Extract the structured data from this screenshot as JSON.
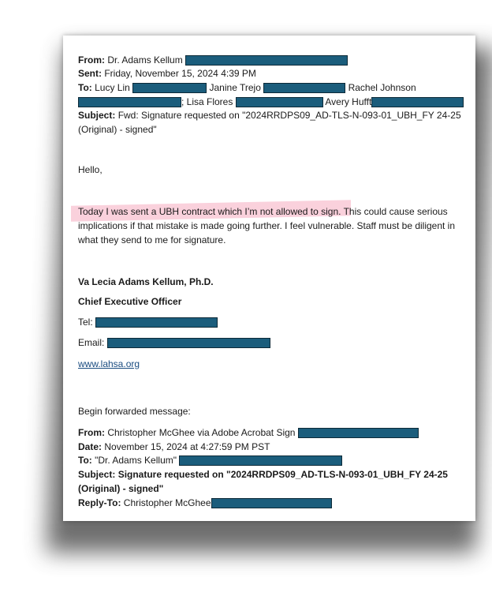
{
  "email": {
    "from_label": "From:",
    "from": "Dr. Adams Kellum",
    "sent_label": "Sent:",
    "sent": "Friday, November 15, 2024 4:39 PM",
    "to_label": "To:",
    "to": [
      "Lucy Lin",
      "Janine Trejo",
      "Rachel Johnson",
      "; Lisa Flores",
      "Avery Hufft"
    ],
    "subject_label": "Subject:",
    "subject_line1": "Fwd: Signature requested on \"2024RRDPS09_AD-TLS-N-093-01_UBH_FY 24-25",
    "subject_line2": "(Original) - signed\"",
    "greeting": "Hello,",
    "body_lines": [
      "Today I was sent a UBH  contract which I’m not allowed to sign. This could cause serious",
      "implications if that mistake is made going further.  I feel vulnerable. Staff must be diligent in",
      "what they send to me for signature."
    ],
    "highlight_color": "#f9c9d6",
    "redaction_color": "#1b5d7c"
  },
  "signature": {
    "name": "Va Lecia Adams Kellum, Ph.D.",
    "title": "Chief Executive Officer",
    "tel_label": "Tel:",
    "email_label": "Email:",
    "website": "www.lahsa.org"
  },
  "forwarded": {
    "intro": "Begin forwarded message:",
    "from_label": "From:",
    "from": "Christopher McGhee via Adobe Acrobat Sign",
    "date_label": "Date:",
    "date": "November 15, 2024 at 4:27:59 PM PST",
    "to_label": "To:",
    "to": "\"Dr. Adams Kellum\"",
    "subject_label": "Subject:",
    "subject_line1": "Signature requested on \"2024RRDPS09_AD-TLS-N-093-01_UBH_FY 24-25",
    "subject_line2": "(Original) - signed\"",
    "reply_to_label": "Reply-To:",
    "reply_to": "Christopher McGhee"
  }
}
